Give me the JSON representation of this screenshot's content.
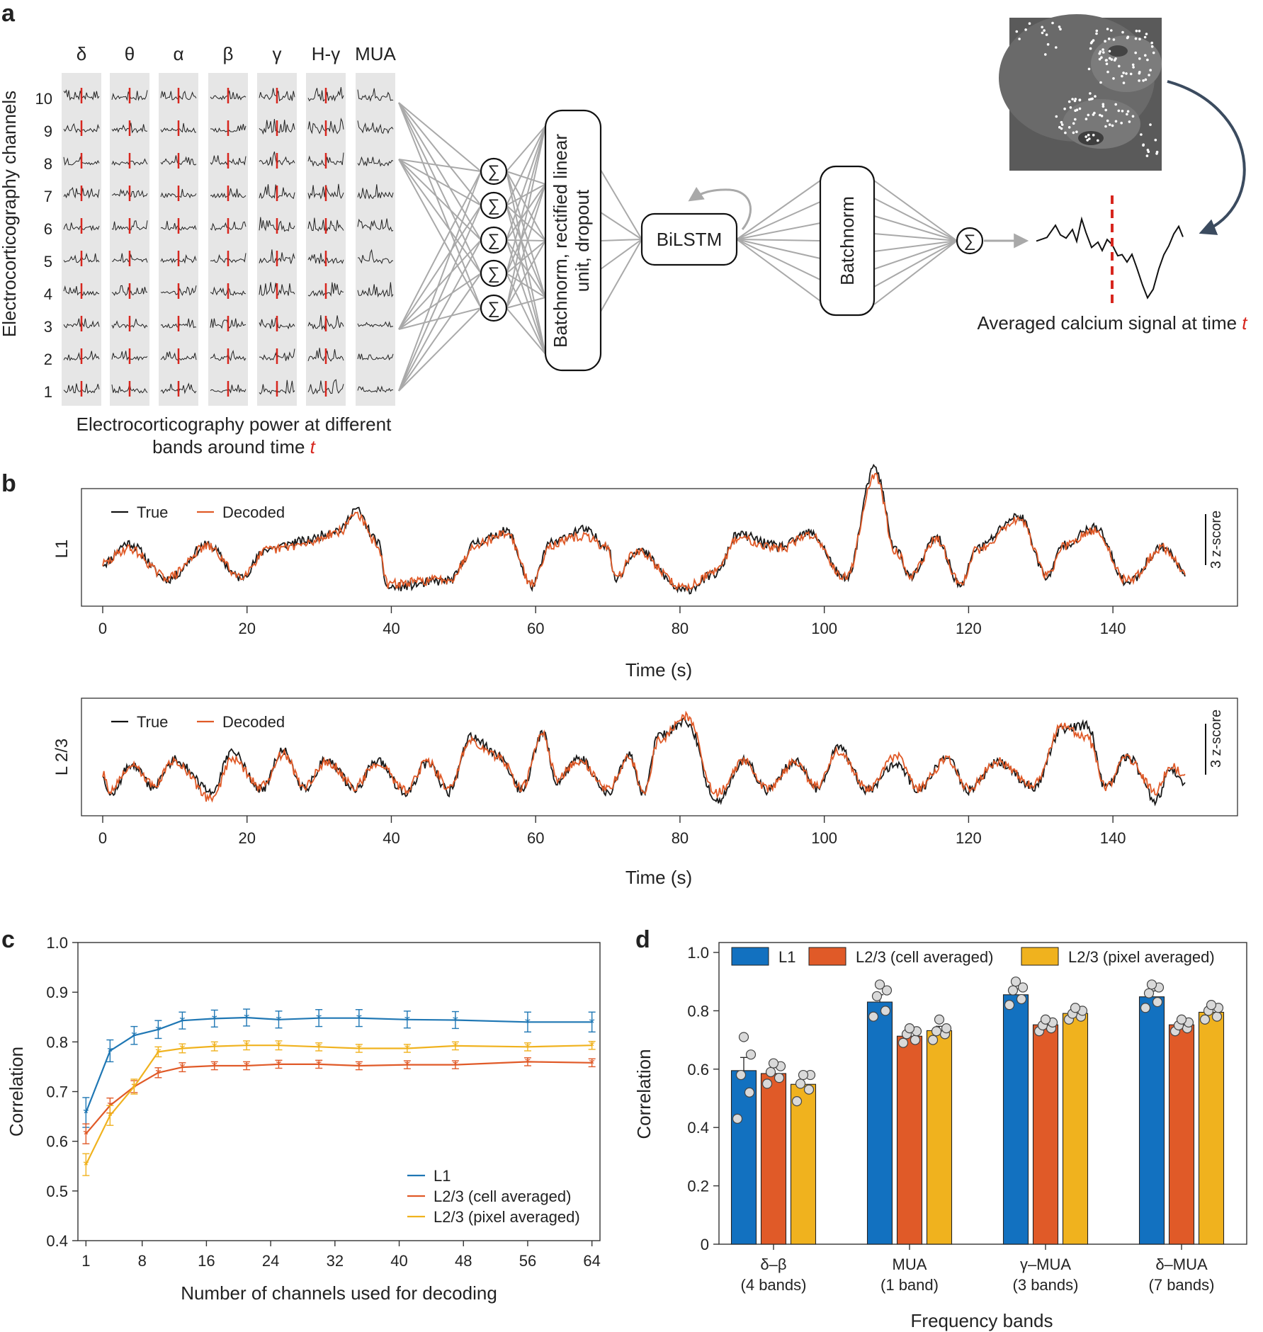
{
  "panel_a": {
    "label": "a",
    "bands": [
      "δ",
      "θ",
      "α",
      "β",
      "γ",
      "H-γ",
      "MUA"
    ],
    "channels": [
      "10",
      "9",
      "8",
      "7",
      "6",
      "5",
      "4",
      "3",
      "2",
      "1"
    ],
    "channels_label": "Electrocorticography channels",
    "caption_line1": "Electrocorticography power at different",
    "caption_line2": "bands around time ",
    "caption_t": "t",
    "sum_symbol": "∑",
    "box_batchnorm_relu_1": "Batchnorm, rectified linear",
    "box_batchnorm_relu_2": "unit, dropout",
    "box_bilstm": "BiLSTM",
    "box_batchnorm": "Batchnorm",
    "output_label": "Averaged calcium signal at time ",
    "output_t": "t",
    "colors": {
      "marker": "#d7261e",
      "arrow": "#3b4b5f",
      "band_bg": "#e6e6e6"
    }
  },
  "panel_b": {
    "label": "b",
    "plots": [
      {
        "ylabel": "L1",
        "legend": [
          "True",
          "Decoded"
        ],
        "scale_label": "3 z-score",
        "xlabel": "Time (s)"
      },
      {
        "ylabel": "L 2/3",
        "legend": [
          "True",
          "Decoded"
        ],
        "scale_label": "3 z-score",
        "xlabel": "Time (s)"
      }
    ]
  },
  "panel_c": {
    "label": "c"
  },
  "panel_d": {
    "label": "d"
  },
  "chart_data": [
    {
      "type": "line",
      "panel": "b-top",
      "ylabel": "L1",
      "xlabel": "Time (s)",
      "xlim": [
        0,
        150
      ],
      "xticks": [
        0,
        20,
        40,
        60,
        80,
        100,
        120,
        140
      ],
      "scale_bar": "3 z-score",
      "series": [
        {
          "name": "True",
          "color": "#1a1a1a",
          "peaks": [
            [
              3.5,
              1.2
            ],
            [
              14.5,
              1.1
            ],
            [
              23,
              0.9
            ],
            [
              27.5,
              1.3
            ],
            [
              33,
              2.0
            ],
            [
              35,
              3.2
            ],
            [
              38,
              1.4
            ],
            [
              52,
              1.3
            ],
            [
              56,
              1.9
            ],
            [
              62,
              1.2
            ],
            [
              66.5,
              2.0
            ],
            [
              70,
              1.1
            ],
            [
              74,
              0.8
            ],
            [
              88,
              1.7
            ],
            [
              94,
              1.0
            ],
            [
              98,
              1.8
            ],
            [
              107,
              5.6
            ],
            [
              110,
              0.8
            ],
            [
              115.5,
              1.5
            ],
            [
              121,
              0.9
            ],
            [
              127,
              2.8
            ],
            [
              133,
              1.1
            ],
            [
              137.5,
              2.1
            ],
            [
              147,
              1.0
            ]
          ],
          "troughs": [
            [
              9,
              -0.9
            ],
            [
              19,
              -0.8
            ],
            [
              39.5,
              -1.4
            ],
            [
              48,
              -1.0
            ],
            [
              59.5,
              -1.3
            ],
            [
              71,
              -0.9
            ],
            [
              80.5,
              -1.6
            ],
            [
              85,
              -0.6
            ],
            [
              103,
              -0.9
            ],
            [
              112,
              -0.8
            ],
            [
              119,
              -1.3
            ],
            [
              131,
              -0.8
            ],
            [
              142,
              -1.1
            ],
            [
              150,
              -0.5
            ]
          ]
        },
        {
          "name": "Decoded",
          "color": "#e05a28",
          "peaks": [
            [
              3.5,
              0.9
            ],
            [
              14.5,
              1.0
            ],
            [
              23,
              0.8
            ],
            [
              27.5,
              1.1
            ],
            [
              33,
              1.9
            ],
            [
              35,
              3.0
            ],
            [
              38,
              1.2
            ],
            [
              52,
              1.2
            ],
            [
              56,
              1.8
            ],
            [
              62,
              1.1
            ],
            [
              66.5,
              1.6
            ],
            [
              70,
              1.0
            ],
            [
              74,
              0.7
            ],
            [
              88,
              1.5
            ],
            [
              94,
              0.9
            ],
            [
              98,
              1.7
            ],
            [
              107,
              5.2
            ],
            [
              110,
              0.7
            ],
            [
              115.5,
              1.4
            ],
            [
              121,
              0.8
            ],
            [
              127,
              2.6
            ],
            [
              133,
              1.0
            ],
            [
              137.5,
              1.9
            ],
            [
              147,
              0.9
            ]
          ],
          "troughs": [
            [
              9,
              -0.8
            ],
            [
              19,
              -0.7
            ],
            [
              39.5,
              -1.2
            ],
            [
              48,
              -0.9
            ],
            [
              59.5,
              -1.2
            ],
            [
              71,
              -0.8
            ],
            [
              80.5,
              -1.4
            ],
            [
              85,
              -0.5
            ],
            [
              103,
              -0.8
            ],
            [
              112,
              -0.7
            ],
            [
              119,
              -1.2
            ],
            [
              131,
              -0.7
            ],
            [
              142,
              -1.0
            ],
            [
              150,
              -0.4
            ]
          ]
        }
      ]
    },
    {
      "type": "line",
      "panel": "b-bottom",
      "ylabel": "L 2/3",
      "xlabel": "Time (s)",
      "xlim": [
        0,
        150
      ],
      "xticks": [
        0,
        20,
        40,
        60,
        80,
        100,
        120,
        140
      ],
      "scale_bar": "3 z-score",
      "series": [
        {
          "name": "True",
          "color": "#1a1a1a",
          "peaks": [
            [
              4,
              0.6
            ],
            [
              10,
              0.9
            ],
            [
              18,
              1.3
            ],
            [
              25,
              1.4
            ],
            [
              31,
              0.9
            ],
            [
              38,
              0.8
            ],
            [
              45,
              0.7
            ],
            [
              51,
              2.3
            ],
            [
              55,
              1.1
            ],
            [
              61,
              2.4
            ],
            [
              66,
              1.0
            ],
            [
              73,
              1.1
            ],
            [
              77,
              2.3
            ],
            [
              81,
              3.1
            ],
            [
              89,
              0.9
            ],
            [
              96,
              0.8
            ],
            [
              102,
              1.6
            ],
            [
              110,
              0.7
            ],
            [
              117,
              1.0
            ],
            [
              124,
              0.7
            ],
            [
              133,
              2.7
            ],
            [
              136.5,
              2.9
            ],
            [
              142,
              1.1
            ],
            [
              148,
              0.4
            ]
          ],
          "troughs": [
            [
              1,
              -1.2
            ],
            [
              7,
              -0.7
            ],
            [
              15,
              -1.0
            ],
            [
              22,
              -0.9
            ],
            [
              28,
              -0.8
            ],
            [
              35,
              -0.8
            ],
            [
              42,
              -1.1
            ],
            [
              48,
              -1.0
            ],
            [
              58,
              -0.9
            ],
            [
              63,
              -0.4
            ],
            [
              70,
              -1.0
            ],
            [
              75,
              -1.2
            ],
            [
              85,
              -1.6
            ],
            [
              92,
              -0.9
            ],
            [
              99,
              -0.8
            ],
            [
              106,
              -0.9
            ],
            [
              113,
              -0.9
            ],
            [
              120,
              -0.9
            ],
            [
              129,
              -0.7
            ],
            [
              139,
              -0.8
            ],
            [
              146,
              -1.5
            ],
            [
              150,
              -0.7
            ]
          ]
        },
        {
          "name": "Decoded",
          "color": "#e05a28",
          "peaks": [
            [
              4,
              0.5
            ],
            [
              10,
              0.8
            ],
            [
              18,
              0.9
            ],
            [
              25,
              1.2
            ],
            [
              31,
              0.8
            ],
            [
              38,
              0.7
            ],
            [
              45,
              0.8
            ],
            [
              51,
              2.0
            ],
            [
              55,
              1.0
            ],
            [
              61,
              2.3
            ],
            [
              66,
              0.8
            ],
            [
              73,
              1.0
            ],
            [
              77,
              2.0
            ],
            [
              81,
              3.4
            ],
            [
              89,
              0.8
            ],
            [
              96,
              0.7
            ],
            [
              102,
              1.4
            ],
            [
              110,
              1.1
            ],
            [
              117,
              0.9
            ],
            [
              124,
              0.8
            ],
            [
              133,
              2.9
            ],
            [
              136.5,
              2.1
            ],
            [
              142,
              1.0
            ],
            [
              148,
              0.6
            ]
          ],
          "troughs": [
            [
              1,
              -0.9
            ],
            [
              7,
              -0.6
            ],
            [
              15,
              -1.4
            ],
            [
              22,
              -0.7
            ],
            [
              28,
              -0.7
            ],
            [
              35,
              -0.7
            ],
            [
              42,
              -0.9
            ],
            [
              48,
              -0.8
            ],
            [
              58,
              -0.8
            ],
            [
              63,
              -0.2
            ],
            [
              70,
              -0.8
            ],
            [
              75,
              -1.1
            ],
            [
              85,
              -1.1
            ],
            [
              92,
              -0.8
            ],
            [
              99,
              -0.7
            ],
            [
              106,
              -0.8
            ],
            [
              113,
              -0.8
            ],
            [
              120,
              -0.8
            ],
            [
              129,
              -0.6
            ],
            [
              139,
              -0.7
            ],
            [
              146,
              -1.0
            ],
            [
              150,
              -0.2
            ]
          ]
        }
      ]
    },
    {
      "type": "line",
      "panel": "c",
      "xlabel": "Number of channels used for decoding",
      "ylabel": "Correlation",
      "xlim": [
        0,
        65
      ],
      "ylim": [
        0.4,
        1.0
      ],
      "xticks": [
        1,
        8,
        16,
        24,
        32,
        40,
        48,
        56,
        64
      ],
      "yticks": [
        "0.4",
        "0.5",
        "0.6",
        "0.7",
        "0.8",
        "0.9",
        "1.0"
      ],
      "x": [
        1,
        4,
        7,
        10,
        13,
        17,
        21,
        25,
        30,
        35,
        41,
        47,
        56,
        64
      ],
      "legend_position": "bottom-right",
      "series": [
        {
          "name": "L1",
          "color": "#1f77b4",
          "values": [
            0.658,
            0.782,
            0.813,
            0.825,
            0.843,
            0.847,
            0.849,
            0.845,
            0.848,
            0.848,
            0.845,
            0.844,
            0.84,
            0.84
          ],
          "errors": [
            0.03,
            0.022,
            0.018,
            0.018,
            0.017,
            0.017,
            0.017,
            0.017,
            0.017,
            0.017,
            0.017,
            0.017,
            0.02,
            0.02
          ]
        },
        {
          "name": "L2/3 (cell averaged)",
          "color": "#e05a28",
          "values": [
            0.615,
            0.672,
            0.71,
            0.738,
            0.749,
            0.752,
            0.752,
            0.755,
            0.755,
            0.752,
            0.754,
            0.754,
            0.76,
            0.758
          ],
          "errors": [
            0.02,
            0.015,
            0.012,
            0.01,
            0.009,
            0.008,
            0.008,
            0.008,
            0.008,
            0.008,
            0.008,
            0.008,
            0.008,
            0.008
          ]
        },
        {
          "name": "L2/3 (pixel averaged)",
          "color": "#f0b21e",
          "values": [
            0.553,
            0.652,
            0.71,
            0.78,
            0.787,
            0.791,
            0.793,
            0.793,
            0.79,
            0.787,
            0.787,
            0.792,
            0.79,
            0.793
          ],
          "errors": [
            0.022,
            0.02,
            0.015,
            0.01,
            0.009,
            0.009,
            0.009,
            0.009,
            0.008,
            0.008,
            0.008,
            0.008,
            0.008,
            0.008
          ]
        }
      ]
    },
    {
      "type": "bar",
      "panel": "d",
      "xlabel": "Frequency bands",
      "ylabel": "Correlation",
      "ylim": [
        0,
        1.0
      ],
      "yticks": [
        "0",
        "0.2",
        "0.4",
        "0.6",
        "0.8",
        "1.0"
      ],
      "categories": [
        {
          "line1": "δ–β",
          "line2": "(4 bands)"
        },
        {
          "line1": "MUA",
          "line2": "(1 band)"
        },
        {
          "line1": "γ–MUA",
          "line2": "(3 bands)"
        },
        {
          "line1": "δ–MUA",
          "line2": "(7 bands)"
        }
      ],
      "legend_position": "top",
      "series": [
        {
          "name": "L1",
          "color": "#1271c0",
          "values": [
            0.595,
            0.83,
            0.855,
            0.848
          ],
          "errors": [
            0.045,
            0.025,
            0.02,
            0.02
          ],
          "points": [
            [
              0.43,
              0.52,
              0.58,
              0.65,
              0.71
            ],
            [
              0.78,
              0.8,
              0.85,
              0.87,
              0.89
            ],
            [
              0.82,
              0.84,
              0.87,
              0.88,
              0.9
            ],
            [
              0.81,
              0.83,
              0.86,
              0.88,
              0.89
            ]
          ]
        },
        {
          "name": "L2/3 (cell averaged)",
          "color": "#e05a28",
          "values": [
            0.585,
            0.713,
            0.752,
            0.752
          ],
          "errors": [
            0.02,
            0.015,
            0.012,
            0.012
          ],
          "points": [
            [
              0.55,
              0.57,
              0.59,
              0.61,
              0.62
            ],
            [
              0.69,
              0.7,
              0.72,
              0.73,
              0.74
            ],
            [
              0.73,
              0.74,
              0.75,
              0.76,
              0.77
            ],
            [
              0.73,
              0.74,
              0.75,
              0.76,
              0.77
            ]
          ]
        },
        {
          "name": "L2/3 (pixel averaged)",
          "color": "#f0b21e",
          "values": [
            0.548,
            0.732,
            0.791,
            0.795
          ],
          "errors": [
            0.025,
            0.015,
            0.012,
            0.012
          ],
          "points": [
            [
              0.49,
              0.53,
              0.55,
              0.58,
              0.58
            ],
            [
              0.7,
              0.72,
              0.73,
              0.74,
              0.77
            ],
            [
              0.77,
              0.78,
              0.79,
              0.8,
              0.81
            ],
            [
              0.77,
              0.78,
              0.8,
              0.81,
              0.82
            ]
          ]
        }
      ]
    }
  ]
}
